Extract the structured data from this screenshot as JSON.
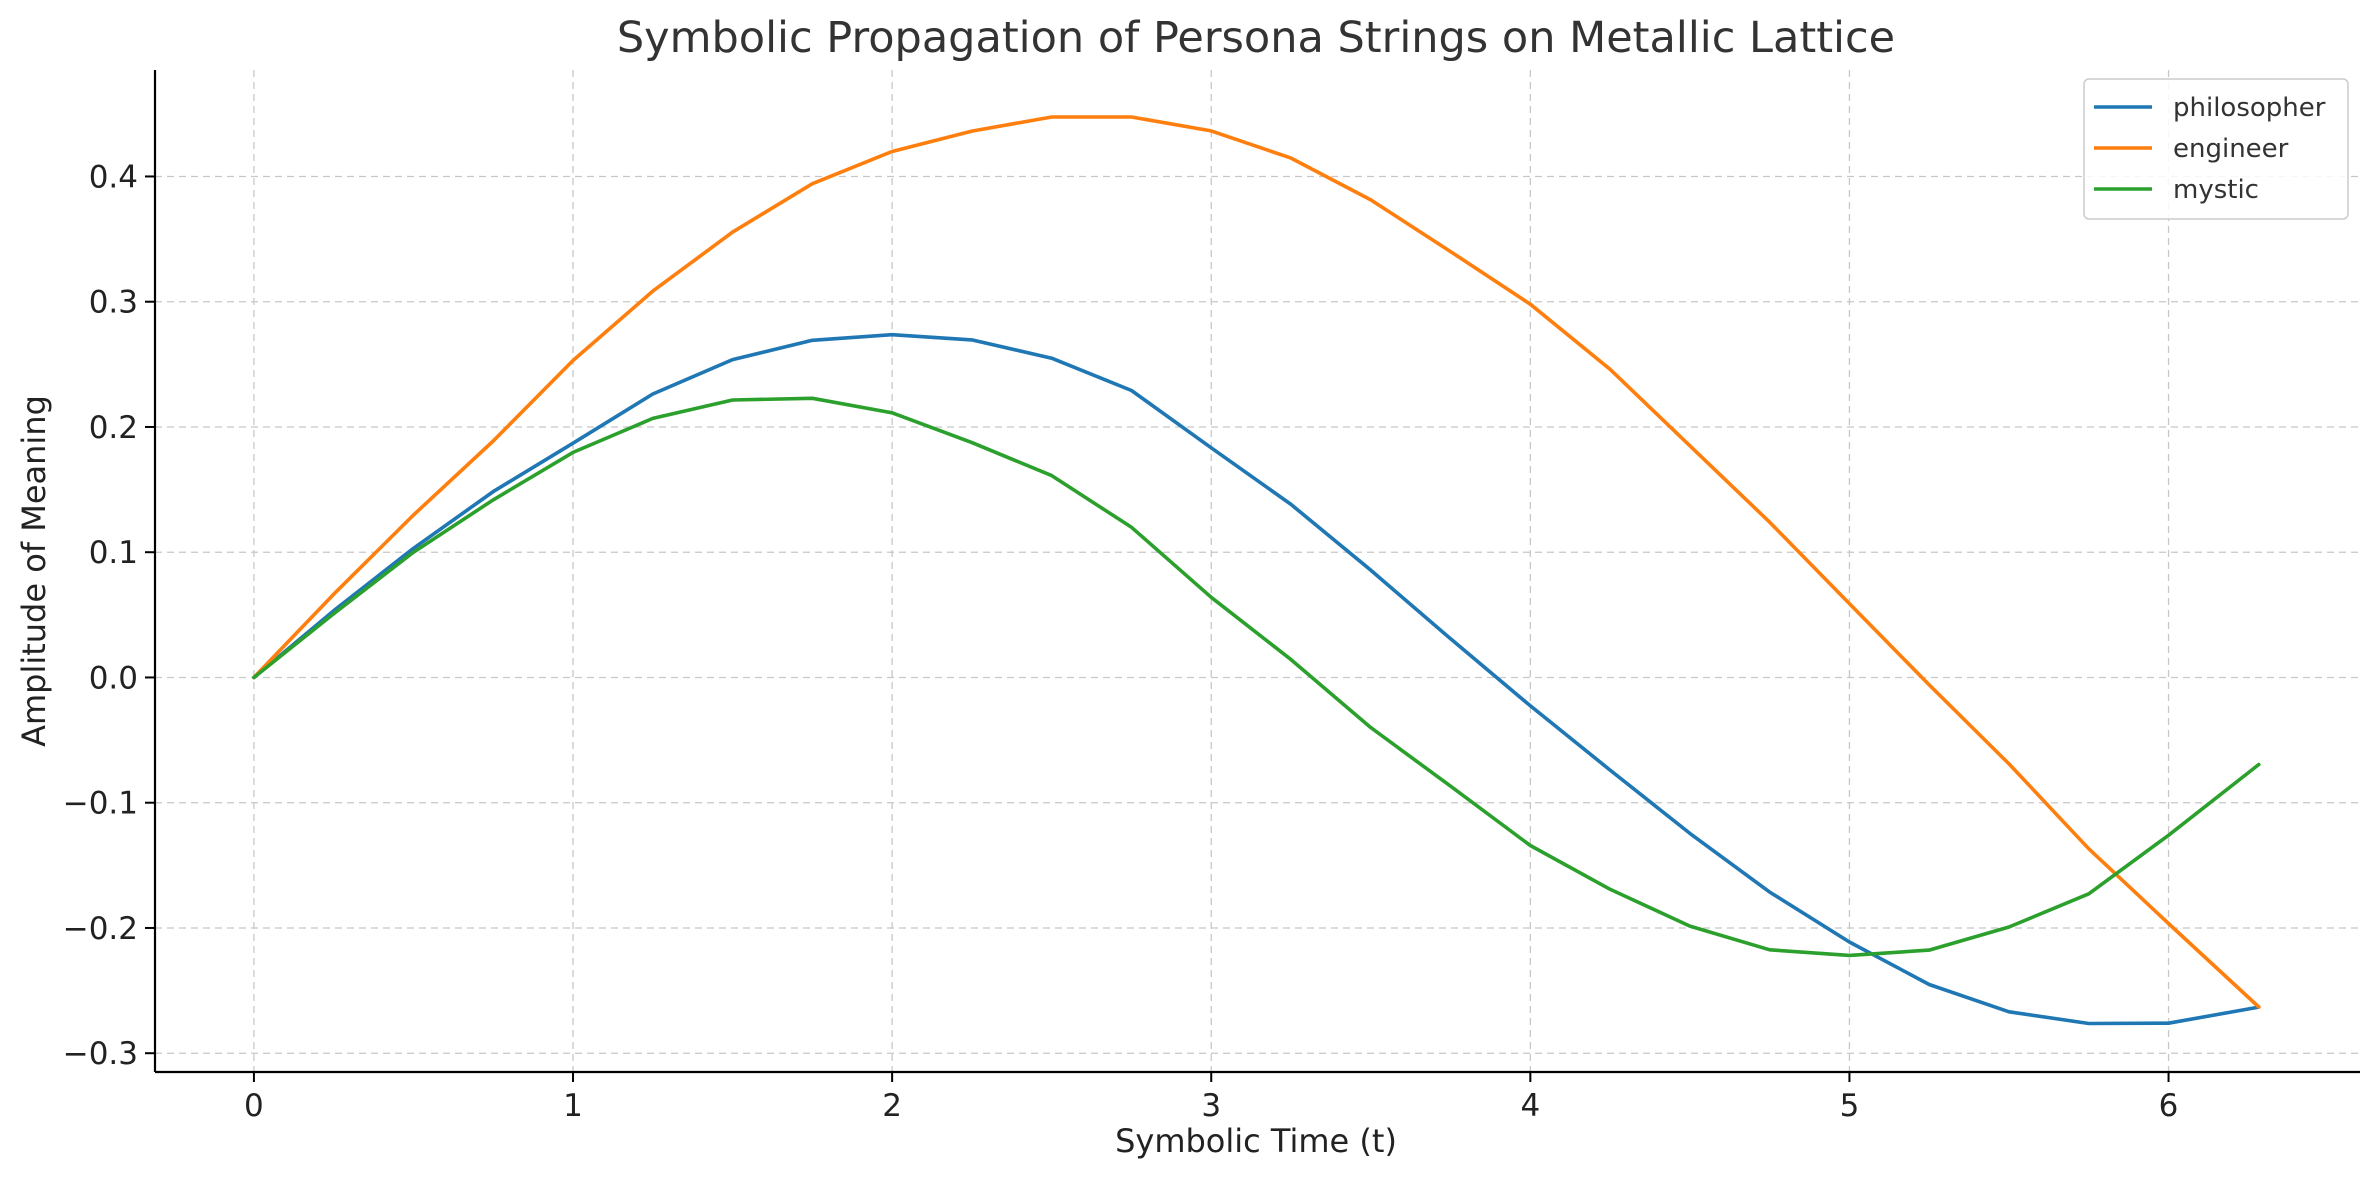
{
  "chart_data": {
    "type": "line",
    "title": "Symbolic Propagation of Persona Strings on Metallic Lattice",
    "xlabel": "Symbolic Time (t)",
    "ylabel": "Amplitude of Meaning",
    "xlim": [
      -0.31,
      6.6
    ],
    "ylim": [
      -0.315,
      0.485
    ],
    "xticks": [
      0,
      1,
      2,
      3,
      4,
      5,
      6
    ],
    "xtick_labels": [
      "0",
      "1",
      "2",
      "3",
      "4",
      "5",
      "6"
    ],
    "yticks": [
      -0.3,
      -0.2,
      -0.1,
      0.0,
      0.1,
      0.2,
      0.3,
      0.4
    ],
    "ytick_labels": [
      "−0.3",
      "−0.2",
      "−0.1",
      "0.0",
      "0.1",
      "0.2",
      "0.3",
      "0.4"
    ],
    "grid": true,
    "legend_position": "top-right",
    "x": [
      0,
      0.25,
      0.5,
      0.75,
      1.0,
      1.25,
      1.5,
      1.75,
      2.0,
      2.25,
      2.5,
      2.75,
      3.0,
      3.25,
      3.5,
      3.75,
      4.0,
      4.25,
      4.5,
      4.75,
      5.0,
      5.25,
      5.5,
      5.75,
      6.0,
      6.283
    ],
    "series": [
      {
        "name": "philosopher",
        "color": "#1f77b4",
        "values": [
          0,
          0.0533,
          0.1031,
          0.1484,
          0.187,
          0.2263,
          0.2538,
          0.2692,
          0.2737,
          0.2695,
          0.2549,
          0.2291,
          0.1834,
          0.1382,
          0.0856,
          0.0309,
          -0.0226,
          -0.074,
          -0.1245,
          -0.1714,
          -0.2112,
          -0.2451,
          -0.2669,
          -0.2763,
          -0.276,
          -0.2632
        ]
      },
      {
        "name": "engineer",
        "color": "#ff7f0e",
        "values": [
          0,
          0.0665,
          0.1297,
          0.1888,
          0.2531,
          0.3085,
          0.3556,
          0.3942,
          0.4199,
          0.4362,
          0.4475,
          0.4475,
          0.4364,
          0.4147,
          0.3813,
          0.34,
          0.298,
          0.246,
          0.185,
          0.124,
          0.059,
          -0.0059,
          -0.069,
          -0.1368,
          -0.1964,
          -0.2631
        ]
      },
      {
        "name": "mystic",
        "color": "#2ca02c",
        "values": [
          0,
          0.0509,
          0.1,
          0.1418,
          0.1797,
          0.2068,
          0.2215,
          0.2229,
          0.2113,
          0.1875,
          0.1612,
          0.1199,
          0.064,
          0.0143,
          -0.04,
          -0.0868,
          -0.1342,
          -0.1691,
          -0.1985,
          -0.2174,
          -0.2219,
          -0.2177,
          -0.1992,
          -0.1727,
          -0.126,
          -0.0695
        ]
      }
    ]
  }
}
